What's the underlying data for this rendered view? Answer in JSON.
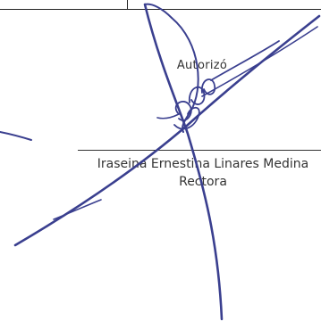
{
  "approval": {
    "role_label": "Autorizó"
  },
  "signer": {
    "name": "Iraseina Ernestina Linares Medina",
    "title": "Rectora"
  },
  "colors": {
    "ink": "#3a3f8f",
    "text": "#333333",
    "rule": "#222222"
  }
}
